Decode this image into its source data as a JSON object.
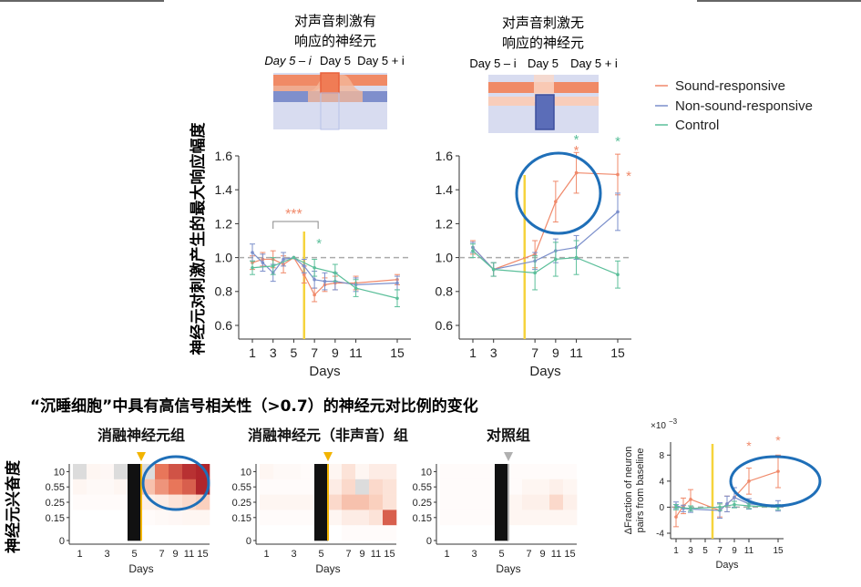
{
  "schematic": {
    "left": {
      "title_line1": "对声音刺激有",
      "title_line2": "响应的神经元",
      "day_labels": [
        "Day 5 – i",
        "Day 5",
        "Day 5 + i"
      ]
    },
    "right": {
      "title_line1": "对声音刺激无",
      "title_line2": "响应的神经元",
      "day_labels": [
        "Day 5 – i",
        "Day 5",
        "Day 5 + i"
      ]
    }
  },
  "legend": {
    "items": [
      "Sound-responsive",
      "Non-sound-responsive",
      "Control"
    ]
  },
  "colors": {
    "sound": "#f0896a",
    "nonsound": "#7b8fcb",
    "control": "#5bbf9a",
    "yellow": "#f6d33c",
    "blue_circle": "#1f6fb8",
    "gray": "#bbbbbb"
  },
  "shared_ylabel": "神经元对刺激产生的最大响应幅度",
  "sleepy_title": "“沉睡细胞”中具有高信号相关性（>0.7）的神经元对比例的变化",
  "heatmap_ylabel": "神经元兴奋度",
  "chart_data": [
    {
      "id": "line-left",
      "type": "line",
      "xlabel": "Days",
      "ylim": [
        0.6,
        1.6
      ],
      "xticks": [
        1,
        3,
        5,
        7,
        9,
        11,
        15
      ],
      "yticks": [
        "0.6",
        "0.8",
        "1.0",
        "1.2",
        "1.4",
        "1.6"
      ],
      "baseline": 1.0,
      "yellow_line_x": 6,
      "annotations": {
        "bracket_stars": "***",
        "point_star": "*"
      },
      "series": [
        {
          "key": "sound",
          "x": [
            1,
            2,
            3,
            4,
            5,
            6,
            7,
            8,
            9,
            11,
            15
          ],
          "y": [
            0.97,
            0.99,
            0.99,
            0.96,
            1.0,
            0.9,
            0.78,
            0.84,
            0.85,
            0.85,
            0.87
          ],
          "err": [
            0.04,
            0.04,
            0.05,
            0.05,
            0,
            0.05,
            0.04,
            0.04,
            0.04,
            0.04,
            0.03
          ]
        },
        {
          "key": "nonsound",
          "x": [
            1,
            2,
            3,
            4,
            5,
            6,
            7,
            8,
            9,
            11,
            15
          ],
          "y": [
            1.03,
            0.97,
            0.91,
            0.99,
            1.0,
            0.95,
            0.87,
            0.86,
            0.86,
            0.84,
            0.85
          ],
          "err": [
            0.05,
            0.05,
            0.05,
            0.04,
            0,
            0.04,
            0.05,
            0.05,
            0.05,
            0.04,
            0.04
          ]
        },
        {
          "key": "control",
          "x": [
            1,
            3,
            5,
            7,
            9,
            11,
            15
          ],
          "y": [
            0.94,
            0.95,
            1.0,
            0.94,
            0.91,
            0.82,
            0.76
          ],
          "err": [
            0.04,
            0.05,
            0,
            0.05,
            0.05,
            0.05,
            0.05
          ]
        }
      ]
    },
    {
      "id": "line-right",
      "type": "line",
      "xlabel": "Days",
      "ylim": [
        0.6,
        1.6
      ],
      "xticks": [
        1,
        3,
        7,
        9,
        11,
        15
      ],
      "yticks": [
        "0.6",
        "0.8",
        "1.0",
        "1.2",
        "1.4",
        "1.6"
      ],
      "baseline": 1.0,
      "yellow_line_x": 6,
      "annotations": {
        "point_star": "*"
      },
      "series": [
        {
          "key": "sound",
          "x": [
            1,
            3,
            7,
            9,
            11,
            15
          ],
          "y": [
            1.06,
            0.93,
            1.02,
            1.33,
            1.5,
            1.49
          ],
          "err": [
            0.04,
            0.04,
            0.08,
            0.12,
            0.12,
            0.12
          ]
        },
        {
          "key": "nonsound",
          "x": [
            1,
            3,
            7,
            9,
            11,
            15
          ],
          "y": [
            1.06,
            0.93,
            0.98,
            1.04,
            1.06,
            1.27
          ],
          "err": [
            0.03,
            0.04,
            0.05,
            0.07,
            0.07,
            0.11
          ]
        },
        {
          "key": "control",
          "x": [
            1,
            3,
            7,
            9,
            11,
            15
          ],
          "y": [
            1.04,
            0.93,
            0.91,
            0.99,
            1.0,
            0.9
          ],
          "err": [
            0.04,
            0.04,
            0.1,
            0.1,
            0.1,
            0.08
          ]
        }
      ]
    },
    {
      "id": "heat-1",
      "type": "heatmap",
      "title": "消融神经元组",
      "xlabel": "Days",
      "columns": [
        "1",
        "2",
        "3",
        "4",
        "5",
        "6",
        "7",
        "9",
        "11",
        "15"
      ],
      "x_tick_labels": [
        "1",
        "3",
        "5",
        "7",
        "9",
        "11",
        "15"
      ],
      "rows": [
        "10",
        "0.55",
        "0.25",
        "0.15",
        "0"
      ],
      "marker_color": "#f2b400",
      "values": [
        [
          0.1,
          0.05,
          0.04,
          0.0,
          null,
          0.15,
          0.55,
          0.7,
          0.85,
          0.9
        ],
        [
          0.05,
          0.03,
          0.03,
          0.05,
          null,
          0.3,
          0.45,
          0.55,
          0.65,
          0.9
        ],
        [
          0.02,
          0.02,
          0.02,
          0.02,
          null,
          0.08,
          0.1,
          0.15,
          0.2,
          0.25
        ],
        [
          0.0,
          0.0,
          0.0,
          0.0,
          null,
          0.02,
          0.03,
          0.04,
          0.05,
          0.05
        ],
        [
          0.0,
          0.0,
          0.0,
          0.0,
          null,
          0.0,
          0.0,
          0.0,
          0.0,
          0.0
        ]
      ],
      "gray_cells": [
        [
          0,
          0
        ],
        [
          0,
          3
        ],
        [
          0,
          5
        ]
      ]
    },
    {
      "id": "heat-2",
      "type": "heatmap",
      "title": "消融神经元（非声音）组",
      "xlabel": "Days",
      "columns": [
        "1",
        "2",
        "3",
        "4",
        "5",
        "6",
        "7",
        "9",
        "11",
        "15"
      ],
      "x_tick_labels": [
        "1",
        "3",
        "5",
        "7",
        "9",
        "11",
        "15"
      ],
      "rows": [
        "10",
        "0.55",
        "0.25",
        "0.15",
        "0"
      ],
      "marker_color": "#f2b400",
      "values": [
        [
          0.05,
          0.03,
          0.03,
          0.02,
          null,
          0.05,
          0.15,
          0.05,
          0.1,
          0.1
        ],
        [
          0.02,
          0.02,
          0.02,
          0.02,
          null,
          0.1,
          0.2,
          0.0,
          0.2,
          0.15
        ],
        [
          0.05,
          0.05,
          0.05,
          0.05,
          null,
          0.2,
          0.3,
          0.3,
          0.25,
          0.15
        ],
        [
          0.02,
          0.02,
          0.02,
          0.02,
          null,
          0.05,
          0.1,
          0.1,
          0.15,
          0.65
        ],
        [
          0.0,
          0.0,
          0.0,
          0.0,
          null,
          0.0,
          0.02,
          0.02,
          0.02,
          0.02
        ]
      ],
      "gray_cells": [
        [
          1,
          7
        ]
      ]
    },
    {
      "id": "heat-3",
      "type": "heatmap",
      "title": "对照组",
      "xlabel": "Days",
      "columns": [
        "1",
        "2",
        "3",
        "4",
        "5",
        "6",
        "7",
        "9",
        "11",
        "15"
      ],
      "x_tick_labels": [
        "1",
        "3",
        "5",
        "7",
        "9",
        "11",
        "15"
      ],
      "rows": [
        "10",
        "0.55",
        "0.25",
        "0.15",
        "0"
      ],
      "marker_color": "#b0b0b0",
      "values": [
        [
          0.02,
          0.02,
          0.02,
          0.02,
          null,
          0.02,
          0.02,
          0.02,
          0.02,
          0.02
        ],
        [
          0.02,
          0.02,
          0.02,
          0.02,
          null,
          0.02,
          0.05,
          0.05,
          0.08,
          0.05
        ],
        [
          0.02,
          0.02,
          0.02,
          0.02,
          null,
          0.05,
          0.08,
          0.08,
          0.2,
          0.08
        ],
        [
          0.02,
          0.02,
          0.02,
          0.02,
          null,
          0.05,
          0.05,
          0.05,
          0.05,
          0.05
        ],
        [
          0.0,
          0.0,
          0.0,
          0.0,
          null,
          0.0,
          0.0,
          0.0,
          0.0,
          0.0
        ]
      ],
      "gray_cells": []
    },
    {
      "id": "fraction",
      "type": "line",
      "xlabel": "Days",
      "ylabel_line1": "ΔFraction of neuron",
      "ylabel_line2": "pairs from baseline",
      "scale_prefix": "×10",
      "scale_exp": "−3",
      "ylim": [
        -4,
        10
      ],
      "xticks": [
        1,
        3,
        5,
        7,
        9,
        11,
        15
      ],
      "yticks": [
        "-4",
        "0",
        "4",
        "8"
      ],
      "baseline": 0,
      "yellow_line_x": 6,
      "annotations": {
        "point_star": "*"
      },
      "series": [
        {
          "key": "sound",
          "x": [
            1,
            2,
            3,
            7,
            8,
            9,
            11,
            15
          ],
          "y": [
            -1.5,
            0.2,
            1.2,
            -0.5,
            0.5,
            1.5,
            4.0,
            5.5
          ],
          "err": [
            1.5,
            1.2,
            1.5,
            1.0,
            1.2,
            1.5,
            2.0,
            2.5
          ]
        },
        {
          "key": "nonsound",
          "x": [
            1,
            2,
            3,
            7,
            8,
            9,
            11,
            15
          ],
          "y": [
            0.3,
            -0.2,
            -0.3,
            -0.5,
            0.5,
            1.5,
            0.5,
            0.2
          ],
          "err": [
            0.5,
            0.5,
            0.5,
            1.2,
            1.2,
            1.5,
            0.8,
            0.8
          ]
        },
        {
          "key": "control",
          "x": [
            1,
            3,
            7,
            9,
            11,
            15
          ],
          "y": [
            0.0,
            -0.2,
            0.0,
            0.4,
            0.2,
            0.0
          ],
          "err": [
            0.4,
            0.4,
            0.5,
            0.5,
            0.4,
            0.4
          ]
        }
      ]
    }
  ]
}
